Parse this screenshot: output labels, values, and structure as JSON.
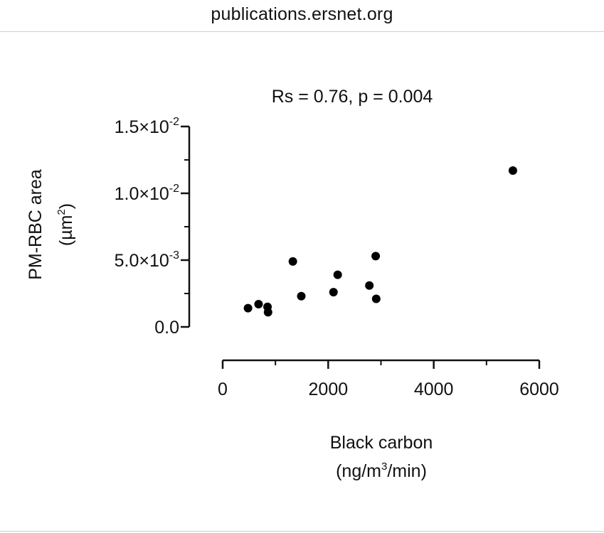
{
  "browser": {
    "url": "publications.ersnet.org"
  },
  "chart_data": {
    "type": "scatter",
    "title": "Rs = 0.76, p = 0.004",
    "xlabel_line1": "Black carbon",
    "xlabel_line2_prefix": "(ng/m",
    "xlabel_line2_sup": "3",
    "xlabel_line2_suffix": "/min)",
    "ylabel_line1": "PM-RBC area",
    "ylabel_line2_prefix": "(µm",
    "ylabel_line2_sup": "2",
    "ylabel_line2_suffix": ")",
    "xlim": [
      0,
      6000
    ],
    "ylim": [
      0,
      0.015
    ],
    "x_ticks": [
      {
        "value": 0,
        "label": "0"
      },
      {
        "value": 2000,
        "label": "2000"
      },
      {
        "value": 4000,
        "label": "4000"
      },
      {
        "value": 6000,
        "label": "6000"
      }
    ],
    "y_ticks": [
      {
        "value": 0,
        "mantissa": "0.0",
        "exponent": ""
      },
      {
        "value": 0.005,
        "mantissa": "5.0×10",
        "exponent": "-3"
      },
      {
        "value": 0.01,
        "mantissa": "1.0×10",
        "exponent": "-2"
      },
      {
        "value": 0.015,
        "mantissa": "1.5×10",
        "exponent": "-2"
      }
    ],
    "x_minor_ticks": [
      1000,
      3000,
      5000
    ],
    "y_minor_ticks": [
      0.0025,
      0.0075,
      0.0125
    ],
    "points": [
      {
        "x": 480,
        "y": 0.0014
      },
      {
        "x": 680,
        "y": 0.0017
      },
      {
        "x": 850,
        "y": 0.0015
      },
      {
        "x": 860,
        "y": 0.0011
      },
      {
        "x": 1330,
        "y": 0.0049
      },
      {
        "x": 1490,
        "y": 0.0023
      },
      {
        "x": 2100,
        "y": 0.0026
      },
      {
        "x": 2180,
        "y": 0.0039
      },
      {
        "x": 2780,
        "y": 0.0031
      },
      {
        "x": 2900,
        "y": 0.0053
      },
      {
        "x": 2910,
        "y": 0.0021
      },
      {
        "x": 5500,
        "y": 0.0117
      }
    ],
    "marker_color": "#000000",
    "grid": false
  }
}
